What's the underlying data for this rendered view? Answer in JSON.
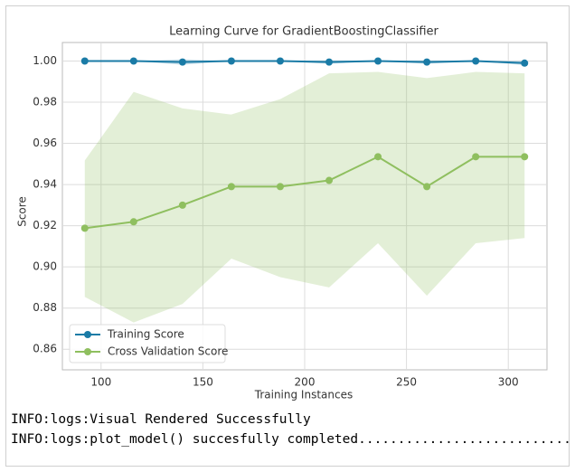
{
  "chart_data": {
    "type": "line",
    "title": "Learning Curve for GradientBoostingClassifier",
    "xlabel": "Training Instances",
    "ylabel": "Score",
    "x": [
      92,
      116,
      140,
      164,
      188,
      212,
      236,
      260,
      284,
      308
    ],
    "series": [
      {
        "name": "Training Score",
        "color": "#1a7ba6",
        "values": [
          1.0,
          1.0,
          0.9995,
          1.0,
          1.0,
          0.9995,
          1.0,
          0.9995,
          1.0,
          0.999
        ],
        "upper": [
          1.0,
          1.0,
          1.0008,
          1.0,
          1.0,
          1.0004,
          1.0,
          1.0004,
          1.0,
          1.0
        ],
        "lower": [
          1.0,
          1.0,
          0.9982,
          1.0,
          1.0,
          0.9986,
          1.0,
          0.9986,
          1.0,
          0.998
        ]
      },
      {
        "name": "Cross Validation Score",
        "color": "#8fbf5f",
        "values": [
          0.9188,
          0.9219,
          0.93,
          0.939,
          0.939,
          0.942,
          0.9535,
          0.939,
          0.9535,
          0.9535
        ],
        "upper": [
          0.9517,
          0.985,
          0.977,
          0.974,
          0.9815,
          0.994,
          0.9947,
          0.9917,
          0.9947,
          0.994
        ],
        "lower": [
          0.8854,
          0.873,
          0.882,
          0.904,
          0.895,
          0.89,
          0.9115,
          0.886,
          0.9115,
          0.914
        ]
      }
    ],
    "xlim": [
      81,
      319
    ],
    "ylim": [
      0.85,
      1.009
    ],
    "xticks": [
      100,
      150,
      200,
      250,
      300
    ],
    "yticks": [
      0.86,
      0.88,
      {
        "value": 0.9,
        "label": "0.90"
      },
      0.92,
      0.94,
      0.96,
      0.98,
      {
        "value": 1.0,
        "label": "1.00"
      }
    ],
    "grid": true,
    "legend": "lower left"
  },
  "console": {
    "lines": [
      "INFO:logs:Visual Rendered Successfully",
      "INFO:logs:plot_model() succesfully completed......................................"
    ]
  }
}
